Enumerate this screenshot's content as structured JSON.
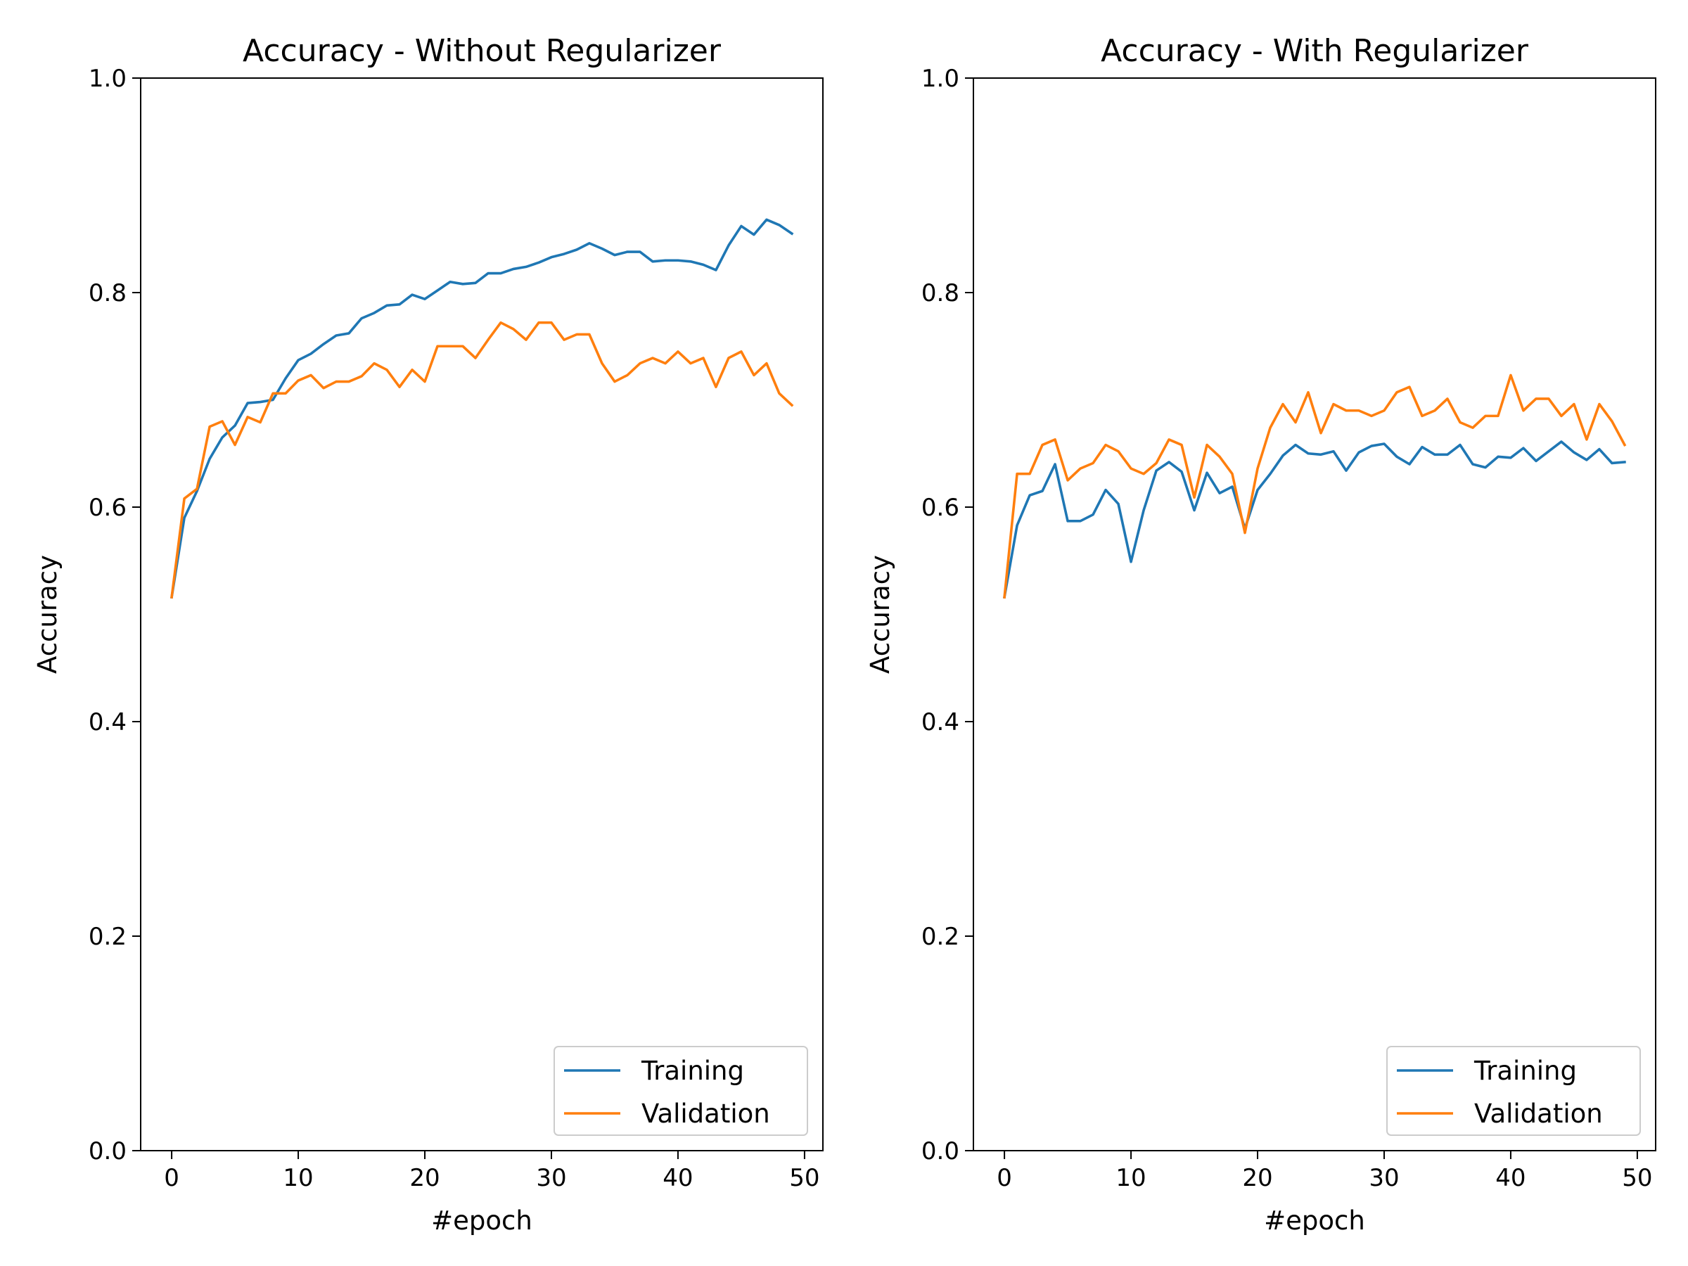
{
  "colors": {
    "training": "#1f77b4",
    "validation": "#ff7f0e"
  },
  "chart_data": [
    {
      "type": "line",
      "title": "Accuracy - Without Regularizer",
      "xlabel": "#epoch",
      "ylabel": "Accuracy",
      "xlim": [
        -2.45,
        51.45
      ],
      "ylim": [
        0.0,
        1.0
      ],
      "xticks": [
        0,
        10,
        20,
        30,
        40,
        50
      ],
      "xtick_labels": [
        "0",
        "10",
        "20",
        "30",
        "40",
        "50"
      ],
      "yticks": [
        0.0,
        0.2,
        0.4,
        0.6,
        0.8,
        1.0
      ],
      "ytick_labels": [
        "0.0",
        "0.2",
        "0.4",
        "0.6",
        "0.8",
        "1.0"
      ],
      "grid": false,
      "legend": {
        "position": "lower-right",
        "entries": [
          "Training",
          "Validation"
        ]
      },
      "x": [
        0,
        1,
        2,
        3,
        4,
        5,
        6,
        7,
        8,
        9,
        10,
        11,
        12,
        13,
        14,
        15,
        16,
        17,
        18,
        19,
        20,
        21,
        22,
        23,
        24,
        25,
        26,
        27,
        28,
        29,
        30,
        31,
        32,
        33,
        34,
        35,
        36,
        37,
        38,
        39,
        40,
        41,
        42,
        43,
        44,
        45,
        46,
        47,
        48,
        49
      ],
      "series": [
        {
          "name": "Training",
          "color": "#1f77b4",
          "values": [
            0.516,
            0.59,
            0.615,
            0.645,
            0.665,
            0.676,
            0.697,
            0.698,
            0.7,
            0.72,
            0.737,
            0.743,
            0.752,
            0.76,
            0.762,
            0.776,
            0.781,
            0.788,
            0.789,
            0.798,
            0.794,
            0.802,
            0.81,
            0.808,
            0.809,
            0.818,
            0.818,
            0.822,
            0.824,
            0.828,
            0.833,
            0.836,
            0.84,
            0.846,
            0.841,
            0.835,
            0.838,
            0.838,
            0.829,
            0.83,
            0.83,
            0.829,
            0.826,
            0.821,
            0.844,
            0.862,
            0.854,
            0.868,
            0.863,
            0.855
          ]
        },
        {
          "name": "Validation",
          "color": "#ff7f0e",
          "values": [
            0.516,
            0.608,
            0.617,
            0.675,
            0.68,
            0.658,
            0.684,
            0.679,
            0.706,
            0.706,
            0.718,
            0.723,
            0.711,
            0.717,
            0.717,
            0.722,
            0.734,
            0.728,
            0.712,
            0.728,
            0.717,
            0.75,
            0.75,
            0.75,
            0.739,
            0.756,
            0.772,
            0.766,
            0.756,
            0.772,
            0.772,
            0.756,
            0.761,
            0.761,
            0.734,
            0.717,
            0.723,
            0.734,
            0.739,
            0.734,
            0.745,
            0.734,
            0.739,
            0.712,
            0.739,
            0.745,
            0.723,
            0.734,
            0.706,
            0.695
          ]
        }
      ]
    },
    {
      "type": "line",
      "title": "Accuracy - With Regularizer",
      "xlabel": "#epoch",
      "ylabel": "Accuracy",
      "xlim": [
        -2.45,
        51.45
      ],
      "ylim": [
        0.0,
        1.0
      ],
      "xticks": [
        0,
        10,
        20,
        30,
        40,
        50
      ],
      "xtick_labels": [
        "0",
        "10",
        "20",
        "30",
        "40",
        "50"
      ],
      "yticks": [
        0.0,
        0.2,
        0.4,
        0.6,
        0.8,
        1.0
      ],
      "ytick_labels": [
        "0.0",
        "0.2",
        "0.4",
        "0.6",
        "0.8",
        "1.0"
      ],
      "grid": false,
      "legend": {
        "position": "lower-right",
        "entries": [
          "Training",
          "Validation"
        ]
      },
      "x": [
        0,
        1,
        2,
        3,
        4,
        5,
        6,
        7,
        8,
        9,
        10,
        11,
        12,
        13,
        14,
        15,
        16,
        17,
        18,
        19,
        20,
        21,
        22,
        23,
        24,
        25,
        26,
        27,
        28,
        29,
        30,
        31,
        32,
        33,
        34,
        35,
        36,
        37,
        38,
        39,
        40,
        41,
        42,
        43,
        44,
        45,
        46,
        47,
        48,
        49
      ],
      "series": [
        {
          "name": "Training",
          "color": "#1f77b4",
          "values": [
            0.516,
            0.583,
            0.611,
            0.615,
            0.64,
            0.587,
            0.587,
            0.593,
            0.616,
            0.603,
            0.549,
            0.597,
            0.634,
            0.642,
            0.633,
            0.597,
            0.632,
            0.613,
            0.619,
            0.58,
            0.616,
            0.631,
            0.648,
            0.658,
            0.65,
            0.649,
            0.652,
            0.634,
            0.651,
            0.657,
            0.659,
            0.647,
            0.64,
            0.656,
            0.649,
            0.649,
            0.658,
            0.64,
            0.637,
            0.647,
            0.646,
            0.655,
            0.643,
            0.652,
            0.661,
            0.651,
            0.644,
            0.654,
            0.641,
            0.642
          ]
        },
        {
          "name": "Validation",
          "color": "#ff7f0e",
          "values": [
            0.516,
            0.631,
            0.631,
            0.658,
            0.663,
            0.625,
            0.636,
            0.641,
            0.658,
            0.652,
            0.636,
            0.631,
            0.641,
            0.663,
            0.658,
            0.609,
            0.658,
            0.647,
            0.631,
            0.576,
            0.636,
            0.674,
            0.696,
            0.679,
            0.707,
            0.669,
            0.696,
            0.69,
            0.69,
            0.685,
            0.69,
            0.707,
            0.712,
            0.685,
            0.69,
            0.701,
            0.679,
            0.674,
            0.685,
            0.685,
            0.723,
            0.69,
            0.701,
            0.701,
            0.685,
            0.696,
            0.663,
            0.696,
            0.68,
            0.658
          ]
        }
      ]
    }
  ]
}
